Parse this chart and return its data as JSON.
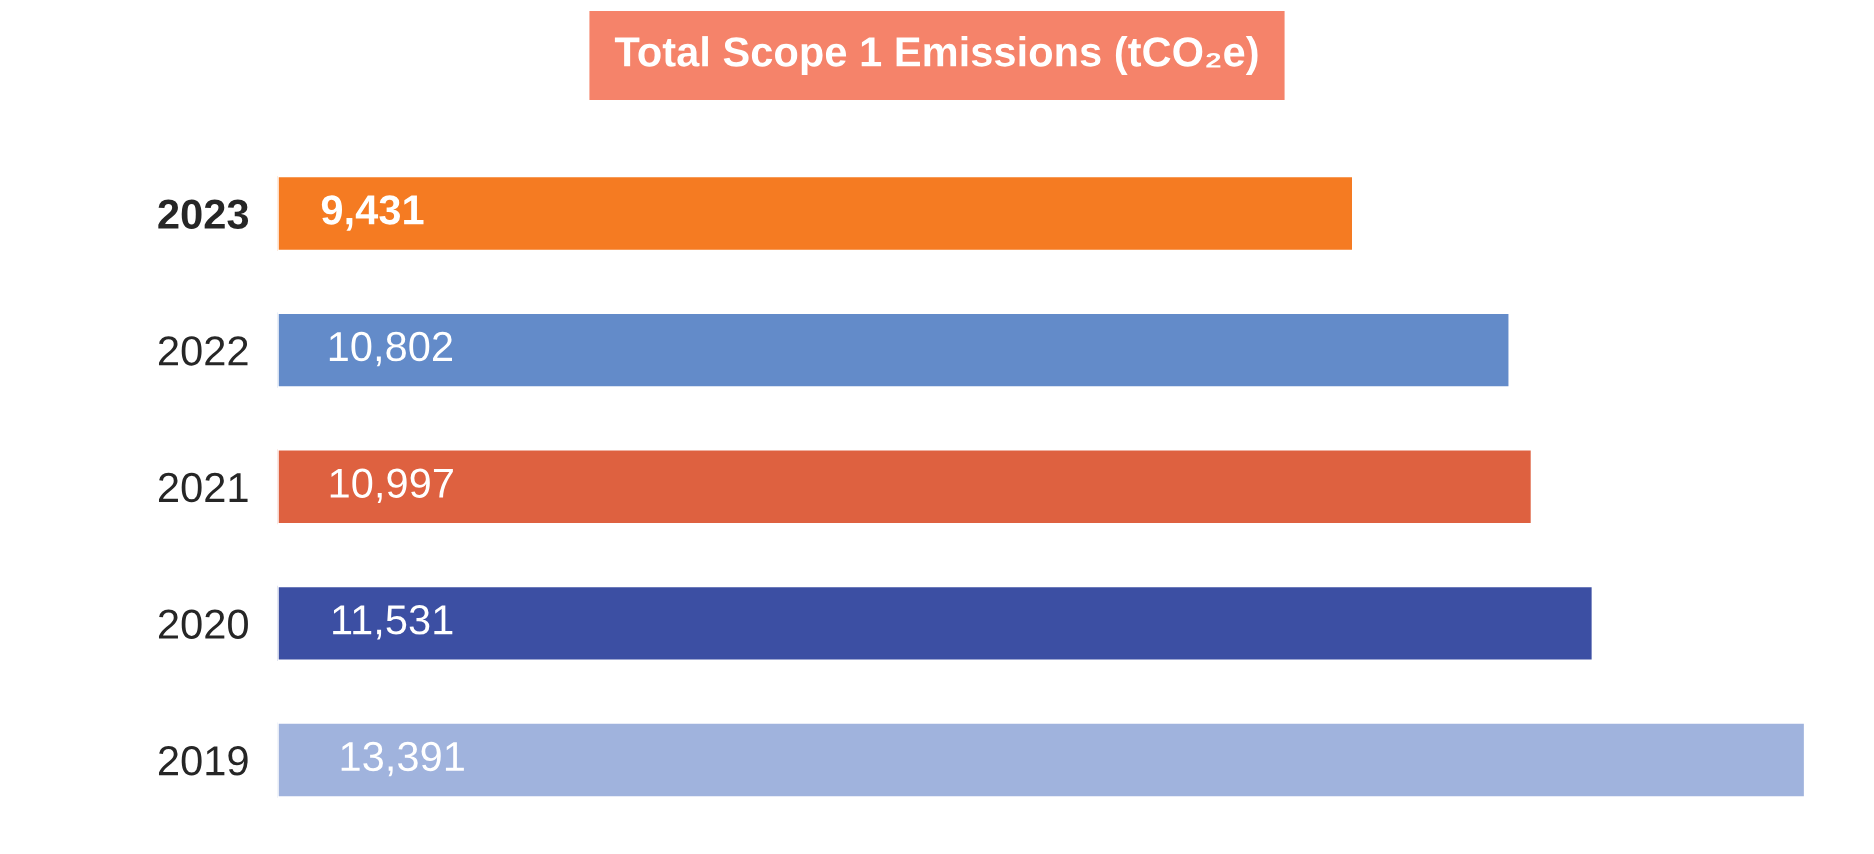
{
  "chart_data": {
    "type": "bar",
    "orientation": "horizontal",
    "title": "Total Scope 1 Emissions (tCO₂e)",
    "categories": [
      "2023",
      "2022",
      "2021",
      "2020",
      "2019"
    ],
    "values": [
      9431,
      10802,
      10997,
      11531,
      13391
    ],
    "colors": [
      "#f57b22",
      "#638bc9",
      "#de6140",
      "#3c4fa3",
      "#a0b3dd"
    ],
    "value_labels": [
      "9,431",
      "10,802",
      "10,997",
      "11,531",
      "13,391"
    ],
    "grid": false,
    "legend": false
  }
}
